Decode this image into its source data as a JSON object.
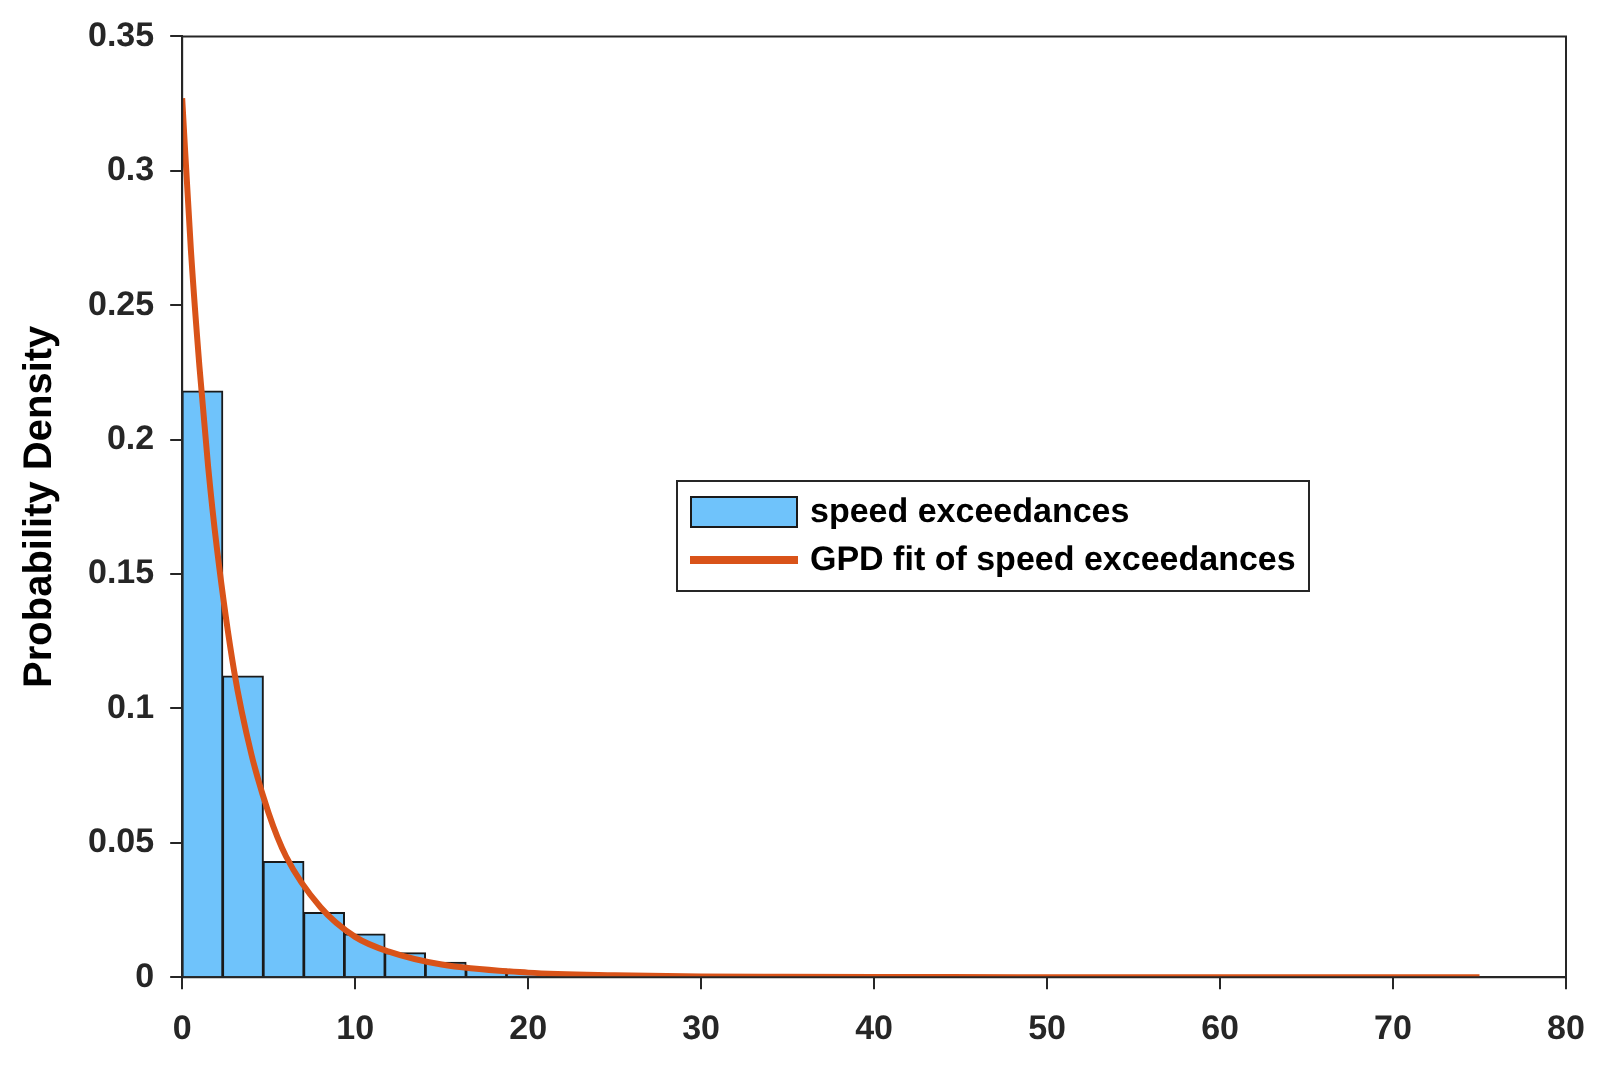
{
  "chart_data": {
    "type": "histogram",
    "ylabel": "Probability Density",
    "legend": "right",
    "grid": false,
    "xlim": [
      0,
      80
    ],
    "xticks": [
      0,
      10,
      20,
      30,
      40,
      50,
      60,
      70,
      80
    ],
    "ylim": [
      0,
      0.35
    ],
    "yticks": [
      0,
      0.05,
      0.1,
      0.15,
      0.2,
      0.25,
      0.3,
      0.35
    ],
    "bins": [
      0,
      2.34,
      4.69,
      7.03,
      9.38,
      11.72,
      14.06,
      16.41,
      18.75,
      21.09
    ],
    "series": [
      {
        "name": "speed exceedances",
        "color": "#6fc3fb",
        "values": [
          0.218,
          0.112,
          0.043,
          0.024,
          0.016,
          0.009,
          0.0055,
          0.003,
          0.002
        ]
      },
      {
        "name": "GPD fit of speed exceedances",
        "type": "line",
        "color": "#d95319",
        "x": [
          0,
          0.5,
          1,
          1.5,
          2,
          3,
          4,
          5,
          6,
          8,
          10,
          12,
          15,
          20,
          25,
          30,
          40,
          50,
          60,
          75
        ],
        "values": [
          0.327,
          0.271,
          0.227,
          0.19,
          0.16,
          0.114,
          0.083,
          0.061,
          0.045,
          0.026,
          0.015,
          0.0094,
          0.0047,
          0.0017,
          0.0007,
          0.0003,
          0.0001,
          0,
          0,
          0
        ]
      }
    ]
  }
}
